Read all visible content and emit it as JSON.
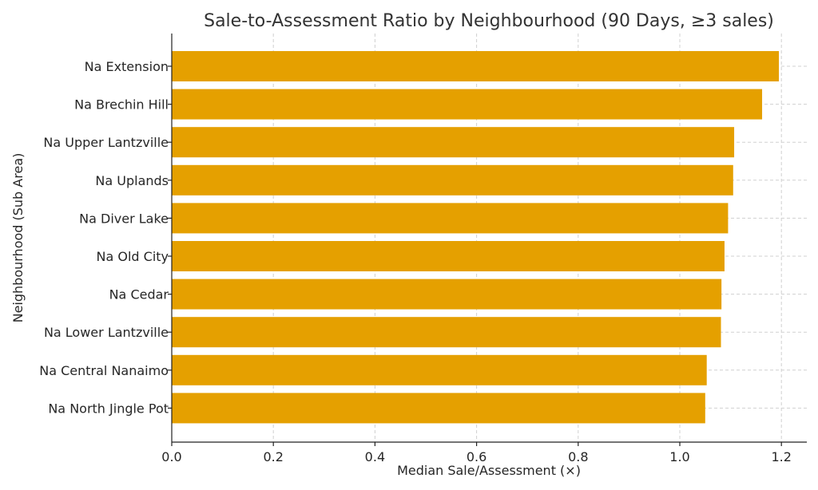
{
  "chart_data": {
    "type": "bar",
    "orientation": "horizontal",
    "title": "Sale-to-Assessment Ratio by Neighbourhood (90 Days, ≥3 sales)",
    "xlabel": "Median Sale/Assessment (×)",
    "ylabel": "Neighbourhood (Sub Area)",
    "xlim": [
      0,
      1.25
    ],
    "xticks": [
      "0.0",
      "0.2",
      "0.4",
      "0.6",
      "0.8",
      "1.0",
      "1.2"
    ],
    "categories": [
      "Na Extension",
      "Na Brechin Hill",
      "Na Upper Lantzville",
      "Na Uplands",
      "Na Diver Lake",
      "Na Old City",
      "Na Cedar",
      "Na Lower Lantzville",
      "Na Central Nanaimo",
      "Na North Jingle Pot"
    ],
    "values": [
      1.195,
      1.162,
      1.107,
      1.105,
      1.095,
      1.088,
      1.082,
      1.081,
      1.053,
      1.05
    ],
    "bar_color": "#E5A000",
    "grid": true
  }
}
